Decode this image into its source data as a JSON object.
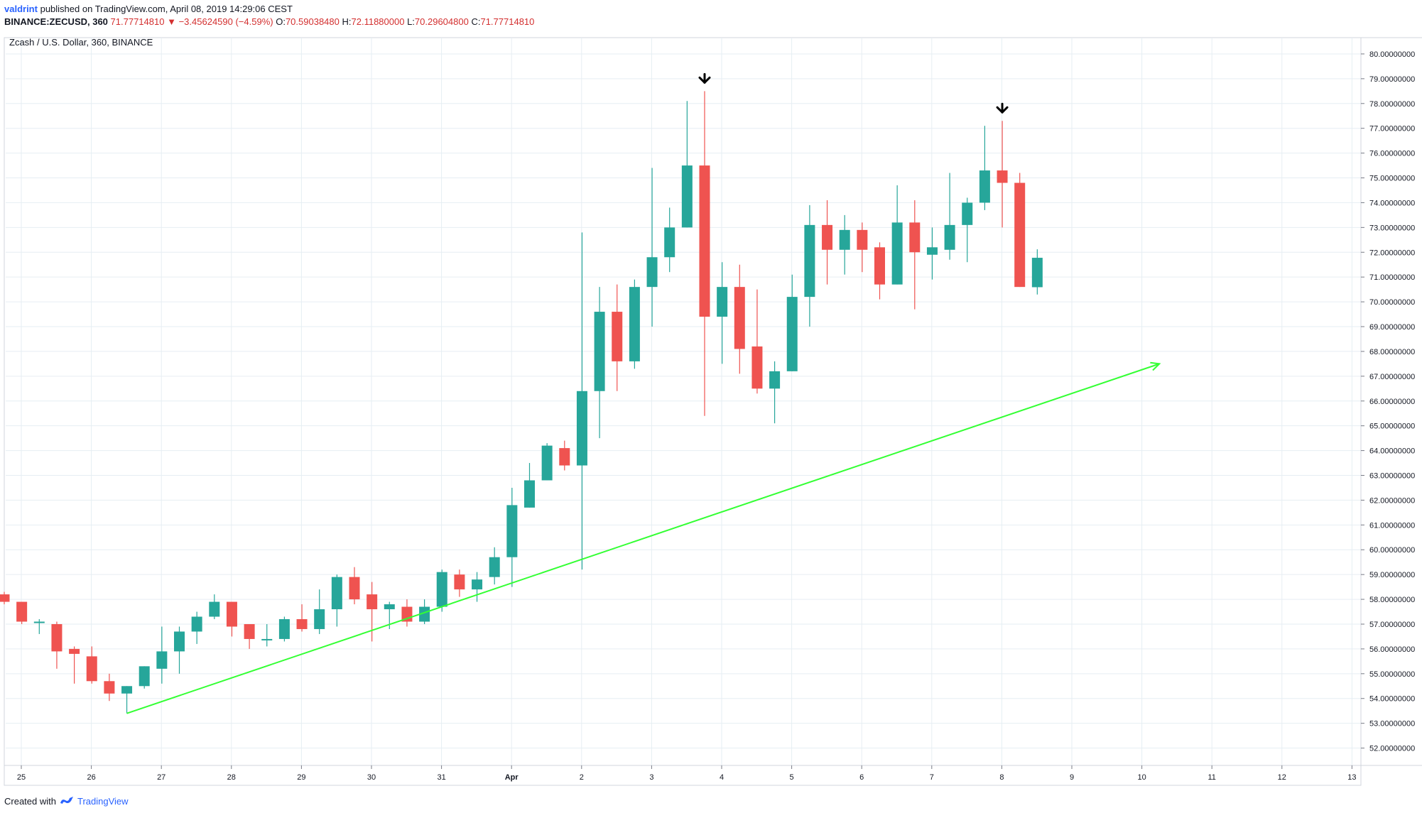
{
  "header": {
    "author": "valdrint",
    "published": "published on TradingView.com, April 08, 2019 14:29:06 CEST",
    "symbol": "BINANCE:ZECUSD, 360",
    "last": "71.77714810",
    "change": "−3.45624590 (−4.59%)",
    "o_label": "O:",
    "o_value": "70.59038480",
    "h_label": "H:",
    "h_value": "72.11880000",
    "l_label": "L:",
    "l_value": "70.29604800",
    "c_label": "C:",
    "c_value": "71.77714810"
  },
  "footer": {
    "created_with": "Created with",
    "brand": "TradingView"
  },
  "colors": {
    "up": "#26a69a",
    "down": "#ef5350",
    "trendline": "#33ff33",
    "grid": "#e6eef3",
    "axis": "#787b86"
  },
  "chart_data": {
    "type": "candlestick",
    "title": "Zcash / U.S. Dollar, 360, BINANCE",
    "interval": "360",
    "ylim": [
      51.3,
      80.6
    ],
    "x_ticks": [
      "25",
      "26",
      "27",
      "28",
      "29",
      "30",
      "31",
      "Apr",
      "2",
      "3",
      "4",
      "5",
      "6",
      "7",
      "8",
      "9",
      "10",
      "11",
      "12",
      "13"
    ],
    "y_ticks": [
      "52.00000000",
      "53.00000000",
      "54.00000000",
      "55.00000000",
      "56.00000000",
      "57.00000000",
      "58.00000000",
      "59.00000000",
      "60.00000000",
      "61.00000000",
      "62.00000000",
      "63.00000000",
      "64.00000000",
      "65.00000000",
      "66.00000000",
      "67.00000000",
      "68.00000000",
      "69.00000000",
      "70.00000000",
      "71.00000000",
      "72.00000000",
      "73.00000000",
      "74.00000000",
      "75.00000000",
      "76.00000000",
      "77.00000000",
      "78.00000000",
      "79.00000000",
      "80.00000000"
    ],
    "candles": [
      {
        "t": "Mar 24 18:00",
        "o": 58.2,
        "h": 58.3,
        "l": 57.8,
        "c": 57.9
      },
      {
        "t": "Mar 25 00:00",
        "o": 57.9,
        "h": 57.9,
        "l": 57.0,
        "c": 57.1
      },
      {
        "t": "Mar 25 06:00",
        "o": 57.1,
        "h": 57.2,
        "l": 56.6,
        "c": 57.1
      },
      {
        "t": "Mar 25 12:00",
        "o": 57.0,
        "h": 57.1,
        "l": 55.2,
        "c": 55.9
      },
      {
        "t": "Mar 25 18:00",
        "o": 56.0,
        "h": 56.1,
        "l": 54.6,
        "c": 55.8
      },
      {
        "t": "Mar 26 00:00",
        "o": 55.7,
        "h": 56.1,
        "l": 54.6,
        "c": 54.7
      },
      {
        "t": "Mar 26 06:00",
        "o": 54.7,
        "h": 55.0,
        "l": 53.9,
        "c": 54.2
      },
      {
        "t": "Mar 26 12:00",
        "o": 54.2,
        "h": 54.5,
        "l": 53.4,
        "c": 54.5
      },
      {
        "t": "Mar 26 18:00",
        "o": 54.5,
        "h": 55.3,
        "l": 54.4,
        "c": 55.3
      },
      {
        "t": "Mar 27 00:00",
        "o": 55.2,
        "h": 56.9,
        "l": 54.6,
        "c": 55.9
      },
      {
        "t": "Mar 27 06:00",
        "o": 55.9,
        "h": 56.9,
        "l": 55.0,
        "c": 56.7
      },
      {
        "t": "Mar 27 12:00",
        "o": 56.7,
        "h": 57.5,
        "l": 56.2,
        "c": 57.3
      },
      {
        "t": "Mar 27 18:00",
        "o": 57.3,
        "h": 58.2,
        "l": 57.2,
        "c": 57.9
      },
      {
        "t": "Mar 28 00:00",
        "o": 57.9,
        "h": 57.9,
        "l": 56.5,
        "c": 56.9
      },
      {
        "t": "Mar 28 06:00",
        "o": 57.0,
        "h": 57.0,
        "l": 56.0,
        "c": 56.4
      },
      {
        "t": "Mar 28 12:00",
        "o": 56.4,
        "h": 57.0,
        "l": 56.1,
        "c": 56.4
      },
      {
        "t": "Mar 28 18:00",
        "o": 56.4,
        "h": 57.3,
        "l": 56.3,
        "c": 57.2
      },
      {
        "t": "Mar 29 00:00",
        "o": 57.2,
        "h": 57.8,
        "l": 56.7,
        "c": 56.8
      },
      {
        "t": "Mar 29 06:00",
        "o": 56.8,
        "h": 58.4,
        "l": 56.6,
        "c": 57.6
      },
      {
        "t": "Mar 29 12:00",
        "o": 57.6,
        "h": 59.0,
        "l": 56.9,
        "c": 58.9
      },
      {
        "t": "Mar 29 18:00",
        "o": 58.9,
        "h": 59.3,
        "l": 57.8,
        "c": 58.0
      },
      {
        "t": "Mar 30 00:00",
        "o": 58.2,
        "h": 58.7,
        "l": 56.3,
        "c": 57.6
      },
      {
        "t": "Mar 30 06:00",
        "o": 57.6,
        "h": 57.9,
        "l": 56.8,
        "c": 57.8
      },
      {
        "t": "Mar 30 12:00",
        "o": 57.7,
        "h": 58.0,
        "l": 56.9,
        "c": 57.1
      },
      {
        "t": "Mar 30 18:00",
        "o": 57.1,
        "h": 58.0,
        "l": 57.0,
        "c": 57.7
      },
      {
        "t": "Mar 31 00:00",
        "o": 57.7,
        "h": 59.2,
        "l": 57.5,
        "c": 59.1
      },
      {
        "t": "Mar 31 06:00",
        "o": 59.0,
        "h": 59.2,
        "l": 58.1,
        "c": 58.4
      },
      {
        "t": "Mar 31 12:00",
        "o": 58.4,
        "h": 59.1,
        "l": 57.9,
        "c": 58.8
      },
      {
        "t": "Mar 31 18:00",
        "o": 58.9,
        "h": 60.1,
        "l": 58.6,
        "c": 59.7
      },
      {
        "t": "Apr 01 00:00",
        "o": 59.7,
        "h": 62.5,
        "l": 58.5,
        "c": 61.8
      },
      {
        "t": "Apr 01 06:00",
        "o": 61.7,
        "h": 63.5,
        "l": 61.7,
        "c": 62.8
      },
      {
        "t": "Apr 01 12:00",
        "o": 62.8,
        "h": 64.3,
        "l": 62.8,
        "c": 64.2
      },
      {
        "t": "Apr 01 18:00",
        "o": 64.1,
        "h": 64.4,
        "l": 63.2,
        "c": 63.4
      },
      {
        "t": "Apr 02 00:00",
        "o": 63.4,
        "h": 72.8,
        "l": 59.2,
        "c": 66.4
      },
      {
        "t": "Apr 02 06:00",
        "o": 66.4,
        "h": 70.6,
        "l": 64.5,
        "c": 69.6
      },
      {
        "t": "Apr 02 12:00",
        "o": 69.6,
        "h": 70.7,
        "l": 66.4,
        "c": 67.6
      },
      {
        "t": "Apr 02 18:00",
        "o": 67.6,
        "h": 70.9,
        "l": 67.3,
        "c": 70.6
      },
      {
        "t": "Apr 03 00:00",
        "o": 70.6,
        "h": 75.4,
        "l": 69.0,
        "c": 71.8
      },
      {
        "t": "Apr 03 06:00",
        "o": 71.8,
        "h": 73.8,
        "l": 71.2,
        "c": 73.0
      },
      {
        "t": "Apr 03 12:00",
        "o": 73.0,
        "h": 78.1,
        "l": 73.0,
        "c": 75.5
      },
      {
        "t": "Apr 03 18:00",
        "o": 75.5,
        "h": 78.5,
        "l": 65.4,
        "c": 69.4
      },
      {
        "t": "Apr 04 00:00",
        "o": 69.4,
        "h": 71.6,
        "l": 67.5,
        "c": 70.6
      },
      {
        "t": "Apr 04 06:00",
        "o": 70.6,
        "h": 71.5,
        "l": 67.1,
        "c": 68.1
      },
      {
        "t": "Apr 04 12:00",
        "o": 68.2,
        "h": 70.5,
        "l": 66.3,
        "c": 66.5
      },
      {
        "t": "Apr 04 18:00",
        "o": 66.5,
        "h": 67.6,
        "l": 65.1,
        "c": 67.2
      },
      {
        "t": "Apr 05 00:00",
        "o": 67.2,
        "h": 71.1,
        "l": 67.2,
        "c": 70.2
      },
      {
        "t": "Apr 05 06:00",
        "o": 70.2,
        "h": 73.9,
        "l": 69.0,
        "c": 73.1
      },
      {
        "t": "Apr 05 12:00",
        "o": 73.1,
        "h": 74.1,
        "l": 70.7,
        "c": 72.1
      },
      {
        "t": "Apr 05 18:00",
        "o": 72.1,
        "h": 73.5,
        "l": 71.1,
        "c": 72.9
      },
      {
        "t": "Apr 06 00:00",
        "o": 72.9,
        "h": 73.2,
        "l": 71.2,
        "c": 72.1
      },
      {
        "t": "Apr 06 06:00",
        "o": 72.2,
        "h": 72.4,
        "l": 70.1,
        "c": 70.7
      },
      {
        "t": "Apr 06 12:00",
        "o": 70.7,
        "h": 74.7,
        "l": 70.7,
        "c": 73.2
      },
      {
        "t": "Apr 06 18:00",
        "o": 73.2,
        "h": 74.1,
        "l": 69.7,
        "c": 72.0
      },
      {
        "t": "Apr 07 00:00",
        "o": 71.9,
        "h": 73.0,
        "l": 70.9,
        "c": 72.2
      },
      {
        "t": "Apr 07 06:00",
        "o": 72.1,
        "h": 75.2,
        "l": 71.7,
        "c": 73.1
      },
      {
        "t": "Apr 07 12:00",
        "o": 73.1,
        "h": 74.2,
        "l": 71.6,
        "c": 74.0
      },
      {
        "t": "Apr 07 18:00",
        "o": 74.0,
        "h": 77.1,
        "l": 73.7,
        "c": 75.3
      },
      {
        "t": "Apr 08 00:00",
        "o": 75.3,
        "h": 77.3,
        "l": 73.0,
        "c": 74.8
      },
      {
        "t": "Apr 08 06:00",
        "o": 74.8,
        "h": 75.2,
        "l": 70.6,
        "c": 70.6
      },
      {
        "t": "Apr 08 12:00",
        "o": 70.5903848,
        "h": 72.1188,
        "l": 70.296048,
        "c": 71.7771481
      }
    ],
    "annotations": [
      {
        "type": "arrow-down",
        "candle": "Apr 03 18:00",
        "color": "#000000"
      },
      {
        "type": "arrow-down",
        "candle": "Apr 08 00:00",
        "color": "#000000"
      },
      {
        "type": "trendline",
        "from": {
          "t": "Mar 26 12:00",
          "y": 53.4
        },
        "to": {
          "t": "Apr 11 06:00",
          "y": 67.5
        },
        "color": "#33ff33"
      }
    ],
    "grid": true,
    "legend": "none"
  }
}
